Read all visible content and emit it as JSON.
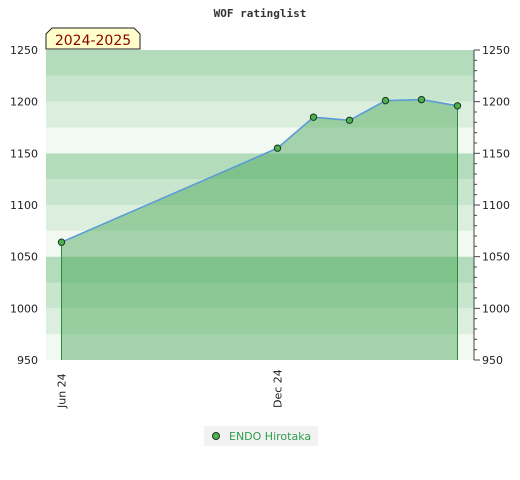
{
  "chart_data": {
    "type": "area",
    "title": "WOF ratinglist",
    "season_label": "2024-2025",
    "x_ticks": [
      "Jun 24",
      "Dec 24"
    ],
    "ylim": [
      950,
      1250
    ],
    "y_ticks": [
      "950",
      "1000",
      "1050",
      "1100",
      "1150",
      "1200",
      "1250"
    ],
    "series": [
      {
        "name": "ENDO Hirotaka",
        "x": [
          "2024-06",
          "2024-12",
          "2025-01",
          "2025-02",
          "2025-03",
          "2025-04",
          "2025-05"
        ],
        "values": [
          1064,
          1155,
          1185,
          1182,
          1201,
          1202,
          1196
        ]
      }
    ],
    "legend_position": "bottom-center",
    "colors": {
      "area_fill": "#3a9e4a",
      "line": "#5b9bd5",
      "marker": "#4caf50",
      "legend_text": "#2e9e4e",
      "season_bg": "#ffffcc",
      "season_text": "#8b0000"
    }
  }
}
